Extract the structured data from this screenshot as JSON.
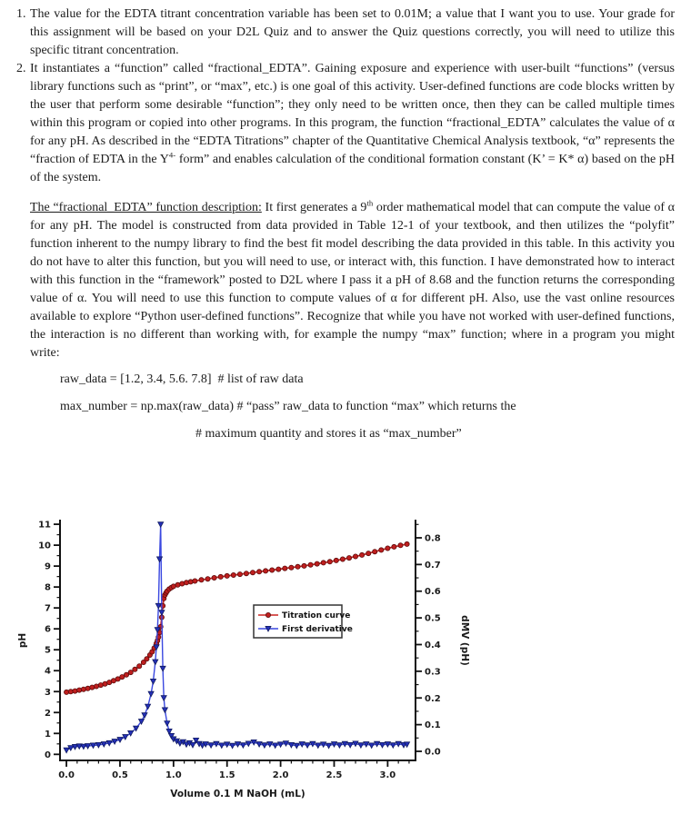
{
  "doc": {
    "item1": {
      "number": "1.",
      "text": "The value for the EDTA titrant concentration variable has been set to 0.01M; a value that I want you to use.  Your grade for this assignment will be based on your D2L Quiz and to answer the Quiz questions correctly, you will need to utilize this specific titrant concentration."
    },
    "item2": {
      "number": "2.",
      "pre": "It instantiates a “function” called “fractional_EDTA”.  Gaining exposure and experience with user-built “functions” (versus library functions such as “print”, or “max”, etc.) is one goal of this activity.  User-defined functions are code blocks written by the user that perform some desirable “function”; they only need to be written once, then they can be called multiple times within this program or copied into other programs.  In this program, the function “fractional_EDTA” calculates the value of α for any pH.  As described in the “EDTA Titrations” chapter of the Quantitative Chemical Analysis textbook, “α” represents the “fraction of EDTA in the Y",
      "sup": "4-",
      "post": " form” and enables calculation of the conditional formation constant (K’ = K* α) based on the pH of the system."
    },
    "description": {
      "underlined": "The “fractional_EDTA” function description:",
      "pre": " It first generates a 9",
      "sup": "th",
      "post": " order mathematical model that can compute the value of α for any pH.  The model is constructed from data provided in Table 12-1 of your textbook, and then utilizes the “polyfit” function inherent to the numpy library to find the best fit model describing the data provided in this table.  In this activity you do not have to alter this function, but you will need to use, or interact with, this function.  I have demonstrated how to interact with this function in the “framework” posted to D2L where I pass it a pH of 8.68 and the function returns the corresponding value of α.  You will need to use this function to compute values of α for different pH.  Also, use the vast online resources available to explore “Python user-defined functions”.  Recognize that while you have not worked with user-defined functions, the interaction is no different than working with, for example the numpy “max” function; where in a program you might write:"
    },
    "code": {
      "line1": "raw_data = [1.2, 3.4, 5.6. 7.8]  # list of raw data",
      "line2": "max_number = np.max(raw_data) # “pass” raw_data to function “max” which returns the",
      "line3": "# maximum quantity and stores it as “max_number”"
    }
  },
  "chart_data": {
    "type": "line",
    "title": "",
    "xlabel": "Volume 0.1 M NaOH (mL)",
    "ylabel_left": "pH",
    "ylabel_right": "dMV (pH)",
    "xlim": [
      0.0,
      3.2
    ],
    "ylim_left": [
      0,
      11
    ],
    "ylim_right": [
      0.0,
      0.8
    ],
    "x_ticks": [
      0.0,
      0.5,
      1.0,
      1.5,
      2.0,
      2.5,
      3.0
    ],
    "y_ticks_left": [
      0,
      1,
      2,
      3,
      4,
      5,
      6,
      7,
      8,
      9,
      10,
      11
    ],
    "y_ticks_right": [
      0.0,
      0.1,
      0.2,
      0.3,
      0.4,
      0.5,
      0.6,
      0.7,
      0.8
    ],
    "minor_tick_steps": {
      "x": 0.1,
      "left": 0.5,
      "right": 0.05
    },
    "grid": false,
    "legend": {
      "position": "center-right",
      "border": true
    },
    "series": [
      {
        "name": "Titration curve",
        "axis": "left",
        "marker": "circle",
        "color": "#cc2420",
        "marker_fill": "#bf1f1f",
        "edge": "#5c0c0c",
        "points": [
          [
            0.0,
            2.97
          ],
          [
            0.04,
            3.0
          ],
          [
            0.08,
            3.03
          ],
          [
            0.12,
            3.07
          ],
          [
            0.16,
            3.11
          ],
          [
            0.2,
            3.15
          ],
          [
            0.24,
            3.2
          ],
          [
            0.28,
            3.25
          ],
          [
            0.32,
            3.31
          ],
          [
            0.36,
            3.37
          ],
          [
            0.4,
            3.44
          ],
          [
            0.44,
            3.52
          ],
          [
            0.48,
            3.6
          ],
          [
            0.52,
            3.7
          ],
          [
            0.56,
            3.8
          ],
          [
            0.6,
            3.92
          ],
          [
            0.64,
            4.06
          ],
          [
            0.68,
            4.22
          ],
          [
            0.72,
            4.4
          ],
          [
            0.75,
            4.56
          ],
          [
            0.78,
            4.75
          ],
          [
            0.8,
            4.9
          ],
          [
            0.82,
            5.08
          ],
          [
            0.84,
            5.3
          ],
          [
            0.85,
            5.44
          ],
          [
            0.86,
            5.61
          ],
          [
            0.87,
            5.82
          ],
          [
            0.88,
            6.1
          ],
          [
            0.89,
            6.55
          ],
          [
            0.9,
            7.1
          ],
          [
            0.91,
            7.45
          ],
          [
            0.92,
            7.62
          ],
          [
            0.93,
            7.72
          ],
          [
            0.94,
            7.8
          ],
          [
            0.96,
            7.9
          ],
          [
            0.98,
            7.97
          ],
          [
            1.0,
            8.03
          ],
          [
            1.04,
            8.1
          ],
          [
            1.08,
            8.16
          ],
          [
            1.12,
            8.21
          ],
          [
            1.16,
            8.25
          ],
          [
            1.2,
            8.29
          ],
          [
            1.26,
            8.34
          ],
          [
            1.32,
            8.39
          ],
          [
            1.38,
            8.44
          ],
          [
            1.44,
            8.49
          ],
          [
            1.5,
            8.53
          ],
          [
            1.56,
            8.57
          ],
          [
            1.62,
            8.61
          ],
          [
            1.68,
            8.65
          ],
          [
            1.74,
            8.69
          ],
          [
            1.8,
            8.73
          ],
          [
            1.86,
            8.77
          ],
          [
            1.92,
            8.81
          ],
          [
            1.98,
            8.85
          ],
          [
            2.04,
            8.89
          ],
          [
            2.1,
            8.93
          ],
          [
            2.16,
            8.97
          ],
          [
            2.22,
            9.01
          ],
          [
            2.28,
            9.06
          ],
          [
            2.34,
            9.11
          ],
          [
            2.4,
            9.16
          ],
          [
            2.46,
            9.21
          ],
          [
            2.52,
            9.27
          ],
          [
            2.58,
            9.33
          ],
          [
            2.64,
            9.39
          ],
          [
            2.7,
            9.46
          ],
          [
            2.76,
            9.53
          ],
          [
            2.82,
            9.61
          ],
          [
            2.88,
            9.69
          ],
          [
            2.94,
            9.77
          ],
          [
            3.0,
            9.85
          ],
          [
            3.06,
            9.92
          ],
          [
            3.12,
            9.99
          ],
          [
            3.18,
            10.05
          ]
        ]
      },
      {
        "name": "First derivative",
        "axis": "right",
        "marker": "triangle-down",
        "color": "#3a48e0",
        "marker_fill": "#2430b8",
        "edge": "#101a60",
        "points": [
          [
            0.0,
            0.004
          ],
          [
            0.04,
            0.013
          ],
          [
            0.08,
            0.017
          ],
          [
            0.12,
            0.019
          ],
          [
            0.16,
            0.018
          ],
          [
            0.2,
            0.02
          ],
          [
            0.25,
            0.022
          ],
          [
            0.3,
            0.024
          ],
          [
            0.35,
            0.027
          ],
          [
            0.4,
            0.031
          ],
          [
            0.45,
            0.037
          ],
          [
            0.5,
            0.044
          ],
          [
            0.55,
            0.054
          ],
          [
            0.6,
            0.068
          ],
          [
            0.65,
            0.086
          ],
          [
            0.7,
            0.112
          ],
          [
            0.73,
            0.135
          ],
          [
            0.76,
            0.168
          ],
          [
            0.79,
            0.215
          ],
          [
            0.81,
            0.262
          ],
          [
            0.83,
            0.335
          ],
          [
            0.84,
            0.39
          ],
          [
            0.85,
            0.455
          ],
          [
            0.86,
            0.545
          ],
          [
            0.87,
            0.72
          ],
          [
            0.88,
            0.85
          ],
          [
            0.89,
            0.52
          ],
          [
            0.9,
            0.31
          ],
          [
            0.91,
            0.2
          ],
          [
            0.92,
            0.155
          ],
          [
            0.94,
            0.105
          ],
          [
            0.96,
            0.075
          ],
          [
            0.98,
            0.058
          ],
          [
            1.0,
            0.046
          ],
          [
            1.03,
            0.038
          ],
          [
            1.06,
            0.03
          ],
          [
            1.09,
            0.035
          ],
          [
            1.12,
            0.026
          ],
          [
            1.15,
            0.031
          ],
          [
            1.18,
            0.024
          ],
          [
            1.21,
            0.041
          ],
          [
            1.24,
            0.028
          ],
          [
            1.27,
            0.022
          ],
          [
            1.3,
            0.027
          ],
          [
            1.35,
            0.023
          ],
          [
            1.4,
            0.028
          ],
          [
            1.45,
            0.022
          ],
          [
            1.5,
            0.026
          ],
          [
            1.55,
            0.021
          ],
          [
            1.6,
            0.027
          ],
          [
            1.65,
            0.023
          ],
          [
            1.7,
            0.029
          ],
          [
            1.75,
            0.034
          ],
          [
            1.8,
            0.027
          ],
          [
            1.85,
            0.023
          ],
          [
            1.9,
            0.027
          ],
          [
            1.95,
            0.022
          ],
          [
            2.0,
            0.026
          ],
          [
            2.05,
            0.03
          ],
          [
            2.1,
            0.024
          ],
          [
            2.15,
            0.021
          ],
          [
            2.2,
            0.027
          ],
          [
            2.25,
            0.023
          ],
          [
            2.3,
            0.028
          ],
          [
            2.35,
            0.022
          ],
          [
            2.4,
            0.026
          ],
          [
            2.45,
            0.021
          ],
          [
            2.5,
            0.027
          ],
          [
            2.55,
            0.023
          ],
          [
            2.6,
            0.028
          ],
          [
            2.65,
            0.024
          ],
          [
            2.7,
            0.029
          ],
          [
            2.75,
            0.023
          ],
          [
            2.8,
            0.027
          ],
          [
            2.85,
            0.022
          ],
          [
            2.9,
            0.028
          ],
          [
            2.95,
            0.024
          ],
          [
            3.0,
            0.027
          ],
          [
            3.05,
            0.023
          ],
          [
            3.1,
            0.028
          ],
          [
            3.15,
            0.024
          ],
          [
            3.18,
            0.026
          ]
        ]
      }
    ]
  }
}
